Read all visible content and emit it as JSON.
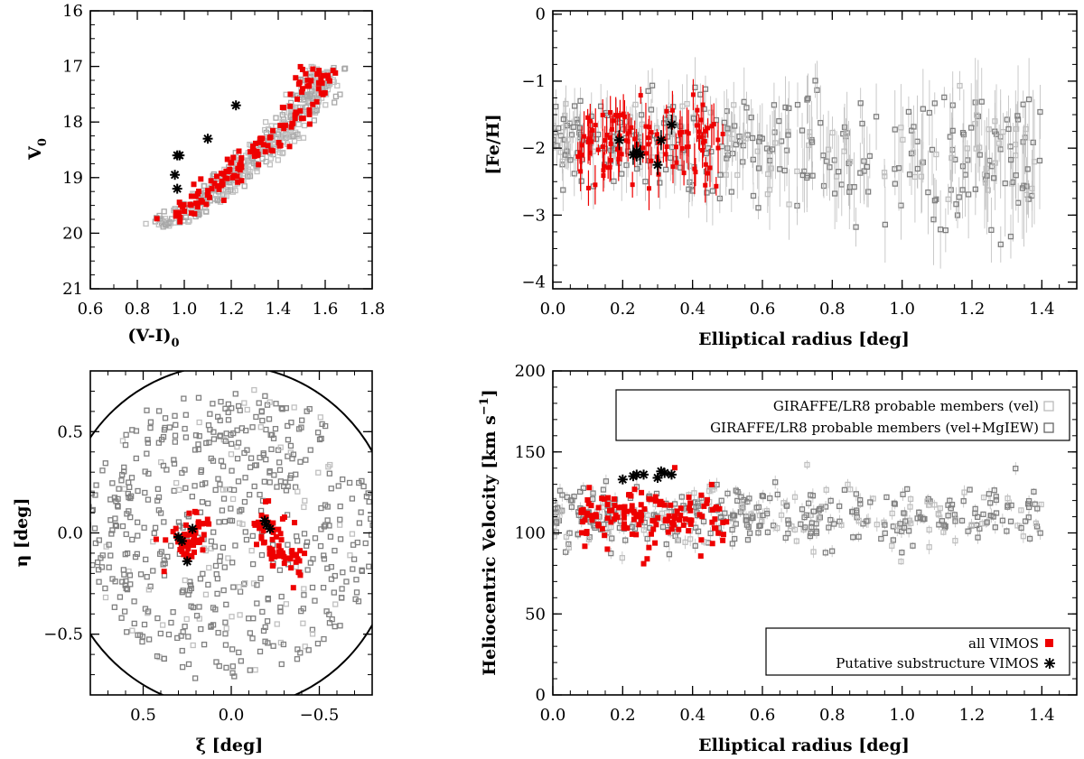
{
  "colors": {
    "member_vel": "#c0c0c0",
    "member_velmg": "#808080",
    "vimos": "#ee0000",
    "substructure": "#000000"
  },
  "legend": {
    "giraffe_vel": "GIRAFFE/LR8 probable members (vel)",
    "giraffe_velmg": "GIRAFFE/LR8 probable members (vel+MgIEW)",
    "all_vimos": "all VIMOS",
    "substructure": "Putative substructure VIMOS"
  },
  "chart_data": [
    {
      "id": "cmd",
      "type": "scatter",
      "xlabel": "(V-I)",
      "xlabel_sub": "0",
      "ylabel": "V",
      "ylabel_sub": "0",
      "xlim": [
        0.6,
        1.8
      ],
      "ylim": [
        21,
        16
      ],
      "xticks": [
        "0.6",
        "0.8",
        "1.0",
        "1.2",
        "1.4",
        "1.6",
        "1.8"
      ],
      "yticks": [
        "16",
        "17",
        "18",
        "19",
        "20",
        "21"
      ],
      "substructure_points": [
        [
          0.97,
          18.6
        ],
        [
          0.98,
          18.6
        ],
        [
          0.96,
          18.95
        ],
        [
          0.97,
          19.2
        ],
        [
          1.1,
          18.3
        ],
        [
          1.22,
          17.7
        ]
      ]
    },
    {
      "id": "feh",
      "type": "scatter",
      "xlabel": "Elliptical radius [deg]",
      "ylabel": "[Fe/H]",
      "xlim": [
        0.0,
        1.5
      ],
      "ylim": [
        -4.1,
        0.05
      ],
      "xticks": [
        "0.0",
        "0.2",
        "0.4",
        "0.6",
        "0.8",
        "1.0",
        "1.2",
        "1.4"
      ],
      "yticks": [
        "0",
        "−1",
        "−2",
        "−3",
        "−4"
      ],
      "substructure_points": [
        [
          0.19,
          -1.88
        ],
        [
          0.23,
          -2.1
        ],
        [
          0.24,
          -2.05
        ],
        [
          0.25,
          -2.1
        ],
        [
          0.3,
          -2.25
        ],
        [
          0.31,
          -1.88
        ],
        [
          0.34,
          -1.65
        ]
      ]
    },
    {
      "id": "sky",
      "type": "scatter",
      "xlabel": "ξ [deg]",
      "ylabel": "η [deg]",
      "xlim": [
        0.8,
        -0.8
      ],
      "ylim": [
        -0.8,
        0.8
      ],
      "xticks": [
        "0.5",
        "0.0",
        "−0.5"
      ],
      "yticks": [
        "0.5",
        "0.0",
        "−0.5"
      ],
      "substructure_points": [
        [
          0.22,
          0.02
        ],
        [
          0.3,
          -0.02
        ],
        [
          0.28,
          -0.04
        ],
        [
          0.25,
          -0.14
        ],
        [
          -0.2,
          0.04
        ],
        [
          -0.22,
          0.02
        ],
        [
          -0.19,
          0.06
        ]
      ]
    },
    {
      "id": "vel",
      "type": "scatter",
      "xlabel": "Elliptical radius [deg]",
      "ylabel": "Heliocentric Velocity [km s",
      "ylabel_sup": "−1",
      "ylabel_end": "]",
      "xlim": [
        0.0,
        1.5
      ],
      "ylim": [
        0,
        200
      ],
      "xticks": [
        "0.0",
        "0.2",
        "0.4",
        "0.6",
        "0.8",
        "1.0",
        "1.2",
        "1.4"
      ],
      "yticks": [
        "0",
        "50",
        "100",
        "150",
        "200"
      ],
      "substructure_points": [
        [
          0.2,
          133
        ],
        [
          0.23,
          135
        ],
        [
          0.24,
          136
        ],
        [
          0.26,
          136
        ],
        [
          0.3,
          134
        ],
        [
          0.31,
          138
        ],
        [
          0.32,
          137
        ],
        [
          0.34,
          136
        ]
      ]
    }
  ]
}
